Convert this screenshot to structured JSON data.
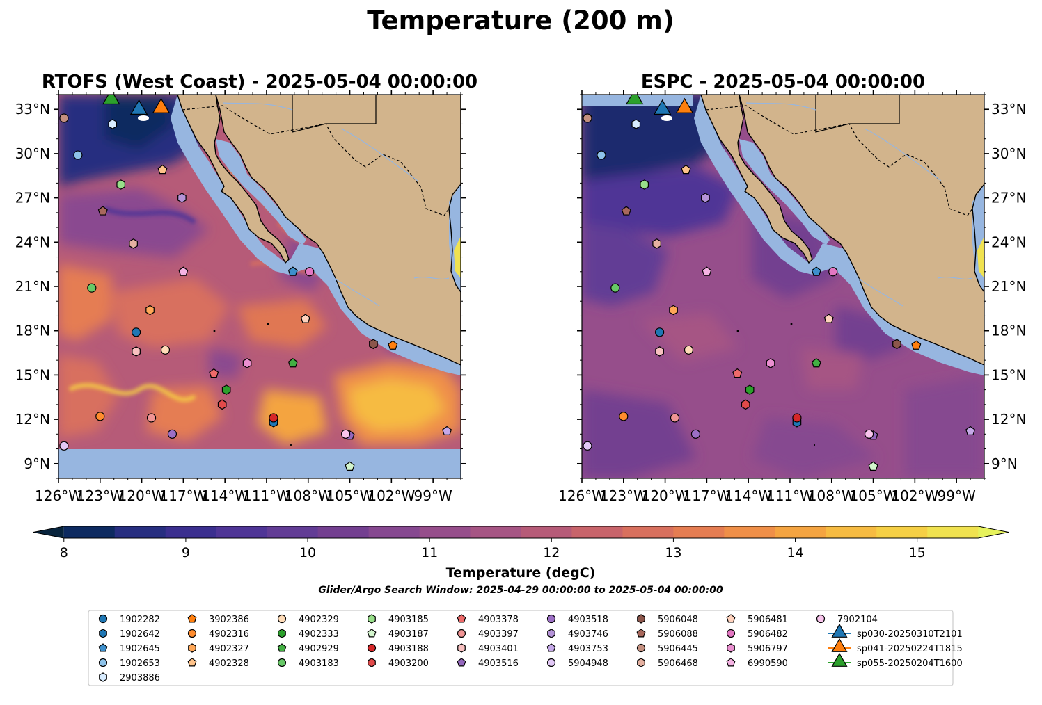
{
  "title": "Temperature (200 m)",
  "panels": [
    {
      "title": "RTOFS (West Coast) - 2025-05-04 00:00:00",
      "variant": "rtofs"
    },
    {
      "title": "ESPC - 2025-05-04 00:00:00",
      "variant": "espc"
    }
  ],
  "map_extent": {
    "lon": [
      -126,
      -97
    ],
    "lat": [
      8,
      34
    ]
  },
  "lon_ticks": [
    "126°W",
    "123°W",
    "120°W",
    "117°W",
    "114°W",
    "111°W",
    "108°W",
    "105°W",
    "102°W",
    "99°W"
  ],
  "lat_ticks": [
    "9°N",
    "12°N",
    "15°N",
    "18°N",
    "21°N",
    "24°N",
    "27°N",
    "30°N",
    "33°N"
  ],
  "colorbar": {
    "label": "Temperature (degC)",
    "min": 7.75,
    "max": 15.75,
    "ticks": [
      "8",
      "9",
      "10",
      "11",
      "12",
      "13",
      "14",
      "15"
    ],
    "colors": [
      "#07233c",
      "#0d2a60",
      "#272e80",
      "#3b2f8f",
      "#4f3596",
      "#623c95",
      "#733f90",
      "#864890",
      "#964e8b",
      "#a65584",
      "#b65b78",
      "#c8646b",
      "#d8705e",
      "#e57d52",
      "#ef8f48",
      "#f4a441",
      "#f6bb42",
      "#f5cf45",
      "#f0e250",
      "#e6f25c"
    ]
  },
  "search_window": "Glider/Argo Search Window: 2025-04-29 00:00:00 to 2025-05-04 00:00:00",
  "colors": {
    "land": "#d2b48c",
    "shelf": "#97b6e0",
    "coast": "#000000"
  },
  "markers": [
    {
      "id": "1902282",
      "shape": "circle",
      "color": "#1f77b4",
      "lon": -120.4,
      "lat": 17.9
    },
    {
      "id": "1902642",
      "shape": "hexagon",
      "color": "#1f77b4",
      "lon": -110.5,
      "lat": 11.8
    },
    {
      "id": "1902645",
      "shape": "pentagon",
      "color": "#3d8fcc",
      "lon": -109.1,
      "lat": 22.0
    },
    {
      "id": "1902653",
      "shape": "circle",
      "color": "#8ec3ea",
      "lon": -124.6,
      "lat": 29.9
    },
    {
      "id": "2903886",
      "shape": "hexagon",
      "color": "#d8ecff",
      "lon": -122.1,
      "lat": 32.0
    },
    {
      "id": "3902386",
      "shape": "pentagon",
      "color": "#ff7f0e",
      "lon": -101.9,
      "lat": 17.0
    },
    {
      "id": "4902316",
      "shape": "circle",
      "color": "#ff8c2e",
      "lon": -123.0,
      "lat": 12.2
    },
    {
      "id": "4902327",
      "shape": "hexagon",
      "color": "#ffa757",
      "lon": -119.4,
      "lat": 19.4
    },
    {
      "id": "4902328",
      "shape": "pentagon",
      "color": "#ffc38a",
      "lon": -118.5,
      "lat": 28.9
    },
    {
      "id": "4902329",
      "shape": "circle",
      "color": "#ffdcb8",
      "lon": -118.3,
      "lat": 16.7
    },
    {
      "id": "4902333",
      "shape": "hexagon",
      "color": "#2ca02c",
      "lon": -113.9,
      "lat": 14.0
    },
    {
      "id": "4902929",
      "shape": "pentagon",
      "color": "#43b043",
      "lon": -109.1,
      "lat": 15.8
    },
    {
      "id": "4903183",
      "shape": "circle",
      "color": "#67c867",
      "lon": -123.6,
      "lat": 20.9
    },
    {
      "id": "4903185",
      "shape": "hexagon",
      "color": "#98df8a",
      "lon": -121.5,
      "lat": 27.9
    },
    {
      "id": "4903187",
      "shape": "pentagon",
      "color": "#d3f5cd",
      "lon": -105.0,
      "lat": 8.8
    },
    {
      "id": "4903188",
      "shape": "circle",
      "color": "#d62728",
      "lon": -110.5,
      "lat": 12.1
    },
    {
      "id": "4903200",
      "shape": "hexagon",
      "color": "#e24a4a",
      "lon": -114.2,
      "lat": 13.0
    },
    {
      "id": "4903378",
      "shape": "pentagon",
      "color": "#ee6a6a",
      "lon": -114.8,
      "lat": 15.1
    },
    {
      "id": "4903397",
      "shape": "circle",
      "color": "#f09494",
      "lon": -119.3,
      "lat": 12.1
    },
    {
      "id": "4903401",
      "shape": "hexagon",
      "color": "#f8c0c0",
      "lon": -120.4,
      "lat": 16.6
    },
    {
      "id": "4903516",
      "shape": "pentagon",
      "color": "#9467bd",
      "lon": -105.0,
      "lat": 10.9
    },
    {
      "id": "4903518",
      "shape": "circle",
      "color": "#9c6fc5",
      "lon": -117.8,
      "lat": 11.0
    },
    {
      "id": "4903746",
      "shape": "hexagon",
      "color": "#b593d8",
      "lon": -117.1,
      "lat": 27.0
    },
    {
      "id": "4903753",
      "shape": "pentagon",
      "color": "#c5a8e8",
      "lon": -98.0,
      "lat": 11.2
    },
    {
      "id": "5904948",
      "shape": "circle",
      "color": "#e2c8f6",
      "lon": -125.6,
      "lat": 10.2
    },
    {
      "id": "5906048",
      "shape": "hexagon",
      "color": "#8c564b",
      "lon": -103.3,
      "lat": 17.1
    },
    {
      "id": "5906088",
      "shape": "pentagon",
      "color": "#a8685c",
      "lon": -122.8,
      "lat": 26.1
    },
    {
      "id": "5906445",
      "shape": "circle",
      "color": "#c49080",
      "lon": -125.6,
      "lat": 32.4
    },
    {
      "id": "5906468",
      "shape": "hexagon",
      "color": "#e5b1a1",
      "lon": -120.6,
      "lat": 23.9
    },
    {
      "id": "5906481",
      "shape": "pentagon",
      "color": "#ffd2bd",
      "lon": -108.2,
      "lat": 18.8
    },
    {
      "id": "5906482",
      "shape": "circle",
      "color": "#e377c2",
      "lon": -107.9,
      "lat": 22.0
    },
    {
      "id": "5906797",
      "shape": "hexagon",
      "color": "#ea8fd0",
      "lon": -112.4,
      "lat": 15.8
    },
    {
      "id": "6990590",
      "shape": "pentagon",
      "color": "#f5b3e3",
      "lon": -117.0,
      "lat": 22.0
    },
    {
      "id": "7902104",
      "shape": "circle",
      "color": "#f8c4ec",
      "lon": -105.3,
      "lat": 11.0
    },
    {
      "id": "sp030-20250310T2101",
      "shape": "triangle",
      "color": "#1f77b4",
      "lon": -120.2,
      "lat": 33.1
    },
    {
      "id": "sp041-20250224T1815",
      "shape": "triangle",
      "color": "#ff7f0e",
      "lon": -118.6,
      "lat": 33.2
    },
    {
      "id": "sp055-20250204T1600",
      "shape": "triangle",
      "color": "#2ca02c",
      "lon": -122.2,
      "lat": 33.8
    }
  ]
}
